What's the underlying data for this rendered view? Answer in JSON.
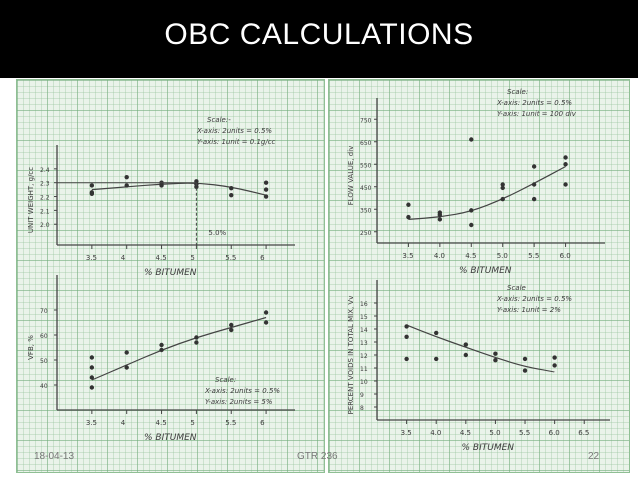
{
  "slide": {
    "title": "OBC CALCULATIONS",
    "footer_date": "18-04-13",
    "footer_center": "GTR 236",
    "page_number": "22"
  },
  "chart_data": [
    {
      "type": "scatter",
      "ylabel": "UNIT WEIGHT, g/cc",
      "xlabel": "% BITUMEN",
      "x_ticks": [
        "3.5",
        "4",
        "4.5",
        "5",
        "5.5",
        "6"
      ],
      "y_ticks": [
        "2.4",
        "2.3",
        "2.2",
        "2.1",
        "2.0"
      ],
      "xlim": [
        3.0,
        6.3
      ],
      "ylim": [
        1.85,
        2.5
      ],
      "scale": [
        "Scale:-",
        "X-axis: 2units = 0.5%",
        "Y-axis: 1unit = 0.1g/cc"
      ],
      "annotation": "5.0%",
      "points": [
        [
          3.5,
          2.28
        ],
        [
          3.5,
          2.23
        ],
        [
          3.5,
          2.22
        ],
        [
          4,
          2.34
        ],
        [
          4,
          2.28
        ],
        [
          4.5,
          2.3
        ],
        [
          4.5,
          2.28
        ],
        [
          5,
          2.31
        ],
        [
          5,
          2.29
        ],
        [
          5,
          2.27
        ],
        [
          5.5,
          2.26
        ],
        [
          5.5,
          2.21
        ],
        [
          6,
          2.3
        ],
        [
          6,
          2.25
        ],
        [
          6,
          2.2
        ]
      ],
      "curve": [
        [
          3.5,
          2.25
        ],
        [
          4,
          2.27
        ],
        [
          4.5,
          2.29
        ],
        [
          5,
          2.3
        ],
        [
          5.5,
          2.27
        ],
        [
          6,
          2.21
        ]
      ],
      "peak": [
        5.0,
        2.3
      ]
    },
    {
      "type": "scatter",
      "ylabel": "VFB, %",
      "xlabel": "% BITUMEN",
      "x_ticks": [
        "3.5",
        "4",
        "4.5",
        "5",
        "5.5",
        "6"
      ],
      "y_ticks": [
        "70",
        "60",
        "50",
        "40"
      ],
      "xlim": [
        3.0,
        6.3
      ],
      "ylim": [
        30,
        80
      ],
      "scale": [
        "Scale:",
        "X-axis: 2units = 0.5%",
        "Y-axis: 2units = 5%"
      ],
      "points": [
        [
          3.5,
          51
        ],
        [
          3.5,
          47
        ],
        [
          3.5,
          43
        ],
        [
          3.5,
          39
        ],
        [
          4,
          53
        ],
        [
          4,
          47
        ],
        [
          4.5,
          56
        ],
        [
          4.5,
          54
        ],
        [
          5,
          59
        ],
        [
          5,
          57
        ],
        [
          5.5,
          64
        ],
        [
          5.5,
          62
        ],
        [
          6,
          69
        ],
        [
          6,
          65
        ]
      ],
      "curve": [
        [
          3.5,
          42
        ],
        [
          4,
          48
        ],
        [
          4.5,
          54
        ],
        [
          5,
          59
        ],
        [
          5.5,
          63
        ],
        [
          6,
          67
        ]
      ]
    },
    {
      "type": "scatter",
      "ylabel": "FLOW VALUE, div",
      "xlabel": "% BITUMEN",
      "x_ticks": [
        "3.5",
        "4.0",
        "4.5",
        "5.0",
        "5.5",
        "6.0"
      ],
      "y_ticks": [
        "750",
        "650",
        "550",
        "450",
        "350",
        "250"
      ],
      "xlim": [
        3.0,
        6.5
      ],
      "ylim": [
        200,
        800
      ],
      "scale": [
        "Scale:",
        "X-axis: 2units = 0.5%",
        "Y-axis: 1unit = 100 div"
      ],
      "points": [
        [
          3.5,
          370
        ],
        [
          3.5,
          315
        ],
        [
          4,
          335
        ],
        [
          4,
          325
        ],
        [
          4,
          305
        ],
        [
          4.5,
          660
        ],
        [
          4.5,
          345
        ],
        [
          4.5,
          280
        ],
        [
          5,
          460
        ],
        [
          5,
          445
        ],
        [
          5,
          395
        ],
        [
          5.5,
          540
        ],
        [
          5.5,
          460
        ],
        [
          5.5,
          395
        ],
        [
          6,
          580
        ],
        [
          6,
          550
        ],
        [
          6,
          460
        ]
      ],
      "curve": [
        [
          3.5,
          305
        ],
        [
          4,
          315
        ],
        [
          4.5,
          340
        ],
        [
          5,
          395
        ],
        [
          5.5,
          465
        ],
        [
          6,
          540
        ]
      ]
    },
    {
      "type": "scatter",
      "ylabel": "PERCENT VOIDS IN TOTAL MIX, Vv",
      "xlabel": "% BITUMEN",
      "x_ticks": [
        "3.5",
        "4.0",
        "4.5",
        "5.0",
        "5.5",
        "6.0",
        "6.5"
      ],
      "y_ticks": [
        "16",
        "15",
        "14",
        "13",
        "12",
        "11",
        "10",
        "9",
        "8"
      ],
      "xlim": [
        3.0,
        6.8
      ],
      "ylim": [
        7,
        17
      ],
      "scale": [
        "Scale",
        "X-axis: 2units = 0.5%",
        "Y-axis: 1unit = 2%"
      ],
      "points": [
        [
          3.5,
          14.2
        ],
        [
          3.5,
          13.4
        ],
        [
          3.5,
          11.7
        ],
        [
          4,
          13.7
        ],
        [
          4,
          11.7
        ],
        [
          4.5,
          12.8
        ],
        [
          4.5,
          12.0
        ],
        [
          5,
          12.1
        ],
        [
          5,
          11.6
        ],
        [
          5.5,
          11.7
        ],
        [
          5.5,
          10.8
        ],
        [
          6,
          11.8
        ],
        [
          6,
          11.2
        ]
      ],
      "curve": [
        [
          3.5,
          14.3
        ],
        [
          4,
          13.4
        ],
        [
          4.5,
          12.6
        ],
        [
          5,
          11.8
        ],
        [
          5.5,
          11.1
        ],
        [
          6,
          10.7
        ]
      ]
    }
  ],
  "colors": {
    "ink": "#3b3b3b",
    "title_bg": "#000000",
    "title_text": "#ffffff",
    "grid_bg": "#eaf3ea"
  }
}
